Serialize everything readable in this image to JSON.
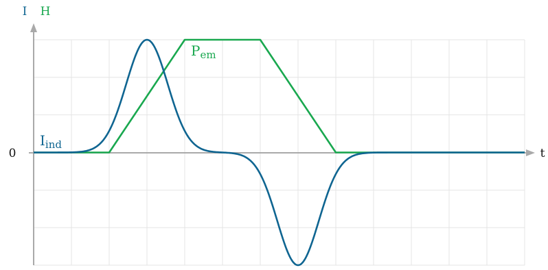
{
  "chart_data": {
    "type": "line",
    "axis_labels": {
      "y_left": "I",
      "y_right": "H",
      "origin": "0",
      "x": "t"
    },
    "xlim": [
      0,
      13
    ],
    "ylim": [
      -3,
      3
    ],
    "grid": true,
    "series": [
      {
        "name": "I",
        "subscript": "ind",
        "color": "#0f6591",
        "kind": "gaussian_pulses",
        "pulses": [
          {
            "center": 3,
            "sigma": 0.55,
            "amplitude": 3
          },
          {
            "center": 7,
            "sigma": 0.55,
            "amplitude": -3
          }
        ]
      },
      {
        "name": "P",
        "subscript": "em",
        "color": "#19a84f",
        "kind": "polyline",
        "x": [
          0,
          2,
          4,
          6,
          8,
          13
        ],
        "y": [
          0,
          0,
          3,
          3,
          0,
          0
        ]
      }
    ]
  },
  "colors": {
    "grid": "#e4e4e4",
    "axis": "#a9a9a9",
    "text_dark": "#111111",
    "label_i_color": "#0f6591",
    "label_h_color": "#19a84f"
  }
}
